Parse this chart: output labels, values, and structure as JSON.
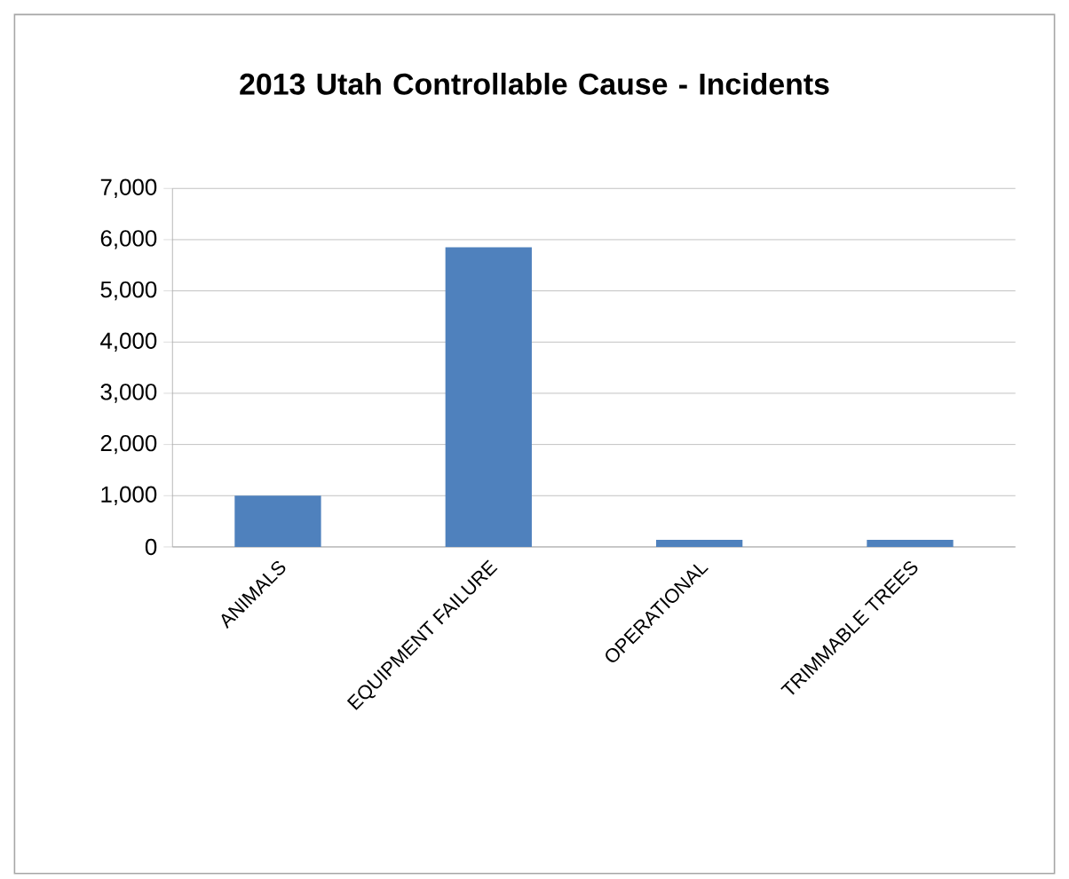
{
  "chart_data": {
    "type": "bar",
    "title": "2013 Utah Controllable Cause - Incidents",
    "categories": [
      "ANIMALS",
      "EQUIPMENT FAILURE",
      "OPERATIONAL",
      "TRIMMABLE TREES"
    ],
    "values": [
      1000,
      5850,
      140,
      140
    ],
    "color": "#4f81bd",
    "ylim": [
      0,
      7000
    ],
    "yticks": [
      0,
      {
        "value": 1000,
        "label": "1,000"
      },
      {
        "value": 2000,
        "label": "2,000"
      },
      {
        "value": 3000,
        "label": "3,000"
      },
      {
        "value": 4000,
        "label": "4,000"
      },
      {
        "value": 5000,
        "label": "5,000"
      },
      {
        "value": 6000,
        "label": "6,000"
      },
      {
        "value": 7000,
        "label": "7,000"
      }
    ],
    "grid": "y"
  }
}
